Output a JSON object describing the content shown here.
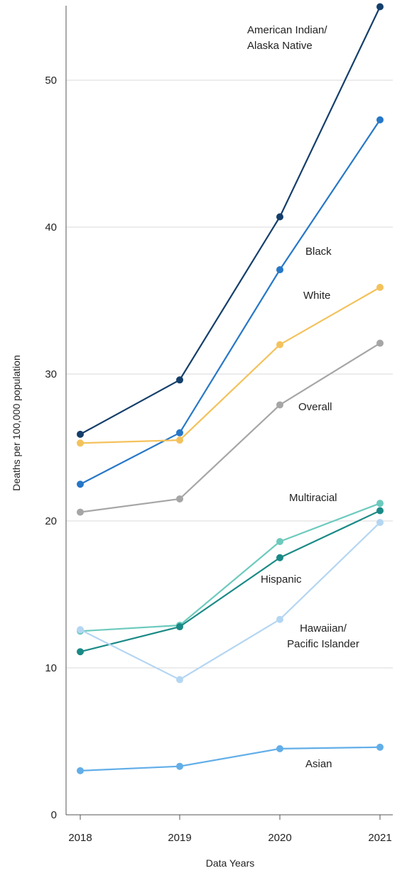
{
  "chart_data": {
    "type": "line",
    "xlabel": "Data Years",
    "ylabel": "Deaths per 100,000 population",
    "x": [
      "2018",
      "2019",
      "2020",
      "2021"
    ],
    "ylim": [
      0,
      55
    ],
    "yticks": [
      0,
      10,
      20,
      30,
      40,
      50
    ],
    "grid": true,
    "series": [
      {
        "name": "American Indian/ Alaska Native",
        "label_lines": [
          "American Indian/",
          "Alaska Native"
        ],
        "color": "#143f6b",
        "values": [
          25.9,
          29.6,
          40.7,
          55.0
        ]
      },
      {
        "name": "Black",
        "label_lines": [
          "Black"
        ],
        "color": "#2677c8",
        "values": [
          22.5,
          26.0,
          37.1,
          47.3
        ]
      },
      {
        "name": "White",
        "label_lines": [
          "White"
        ],
        "color": "#f4c25c",
        "values": [
          25.3,
          25.5,
          32.0,
          35.9
        ]
      },
      {
        "name": "Overall",
        "label_lines": [
          "Overall"
        ],
        "color": "#a6a6a6",
        "values": [
          20.6,
          21.5,
          27.9,
          32.1
        ]
      },
      {
        "name": "Multiracial",
        "label_lines": [
          "Multiracial"
        ],
        "color": "#6ccabd",
        "values": [
          12.5,
          12.9,
          18.6,
          21.2
        ]
      },
      {
        "name": "Hispanic",
        "label_lines": [
          "Hispanic"
        ],
        "color": "#1a8a86",
        "values": [
          11.1,
          12.8,
          17.5,
          20.7
        ]
      },
      {
        "name": "Hawaiian/ Pacific Islander",
        "label_lines": [
          "Hawaiian/",
          "Pacific Islander"
        ],
        "color": "#b4d6f2",
        "values": [
          12.6,
          9.2,
          13.3,
          19.9
        ]
      },
      {
        "name": "Asian",
        "label_lines": [
          "Asian"
        ],
        "color": "#62aee8",
        "values": [
          3.0,
          3.3,
          4.5,
          4.6
        ]
      }
    ]
  }
}
